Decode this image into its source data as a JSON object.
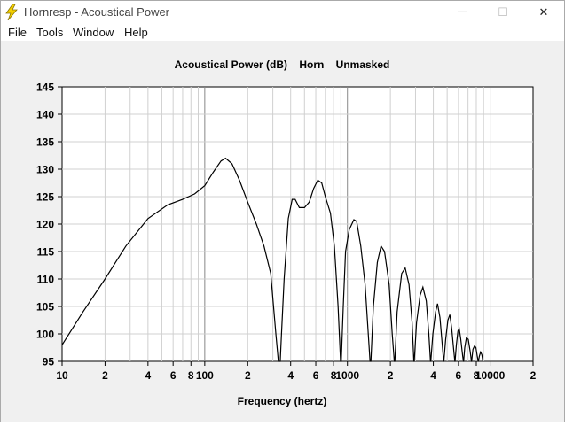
{
  "window": {
    "title": "Hornresp - Acoustical Power",
    "minimize_glyph": "—",
    "maximize_glyph": "☐",
    "close_glyph": "✕"
  },
  "menu": [
    "File",
    "Tools",
    "Window",
    "Help"
  ],
  "colors": {
    "titlebar_bg": "#ffffff",
    "client_bg": "#f0f0f0",
    "plot_bg": "#ffffff",
    "grid": "#d0d0d0",
    "curve": "#000000",
    "icon": "#f5d000"
  },
  "chart_data": {
    "type": "line",
    "title": "Acoustical Power (dB)    Horn    Unmasked",
    "xlabel": "Frequency (hertz)",
    "ylabel": "",
    "x_scale": "log",
    "xlim": [
      10,
      20000
    ],
    "ylim": [
      95,
      145
    ],
    "grid": true,
    "x_tick_labels": [
      {
        "value": 10,
        "label": "10"
      },
      {
        "value": 20,
        "label": "2"
      },
      {
        "value": 40,
        "label": "4"
      },
      {
        "value": 60,
        "label": "6"
      },
      {
        "value": 80,
        "label": "8"
      },
      {
        "value": 100,
        "label": "100"
      },
      {
        "value": 200,
        "label": "2"
      },
      {
        "value": 400,
        "label": "4"
      },
      {
        "value": 600,
        "label": "6"
      },
      {
        "value": 800,
        "label": "8"
      },
      {
        "value": 1000,
        "label": "1000"
      },
      {
        "value": 2000,
        "label": "2"
      },
      {
        "value": 4000,
        "label": "4"
      },
      {
        "value": 6000,
        "label": "6"
      },
      {
        "value": 8000,
        "label": "8"
      },
      {
        "value": 10000,
        "label": "10000"
      },
      {
        "value": 20000,
        "label": "2"
      }
    ],
    "y_ticks": [
      95,
      100,
      105,
      110,
      115,
      120,
      125,
      130,
      135,
      140,
      145
    ],
    "series": [
      {
        "points": [
          [
            10,
            98
          ],
          [
            14,
            104
          ],
          [
            20,
            110
          ],
          [
            28,
            116
          ],
          [
            40,
            121
          ],
          [
            55,
            123.5
          ],
          [
            70,
            124.5
          ],
          [
            85,
            125.5
          ],
          [
            100,
            127
          ],
          [
            115,
            129.5
          ],
          [
            130,
            131.5
          ],
          [
            140,
            132
          ],
          [
            155,
            131
          ],
          [
            175,
            128
          ],
          [
            200,
            124
          ],
          [
            230,
            120
          ],
          [
            260,
            116
          ],
          [
            290,
            111
          ],
          [
            315,
            100
          ],
          [
            328,
            95
          ],
          [
            338,
            95
          ],
          [
            345,
            100
          ],
          [
            360,
            110
          ],
          [
            385,
            121
          ],
          [
            410,
            124.5
          ],
          [
            430,
            124.5
          ],
          [
            460,
            123
          ],
          [
            500,
            123
          ],
          [
            540,
            124
          ],
          [
            580,
            126.5
          ],
          [
            620,
            128
          ],
          [
            660,
            127.5
          ],
          [
            700,
            125
          ],
          [
            760,
            122
          ],
          [
            810,
            116
          ],
          [
            860,
            105
          ],
          [
            895,
            95
          ],
          [
            905,
            95
          ],
          [
            935,
            105
          ],
          [
            970,
            115
          ],
          [
            1030,
            119
          ],
          [
            1110,
            120.8
          ],
          [
            1160,
            120.5
          ],
          [
            1240,
            116
          ],
          [
            1330,
            109
          ],
          [
            1400,
            100
          ],
          [
            1440,
            95
          ],
          [
            1460,
            95
          ],
          [
            1520,
            105
          ],
          [
            1620,
            113
          ],
          [
            1720,
            116
          ],
          [
            1820,
            115
          ],
          [
            1960,
            109
          ],
          [
            2060,
            100
          ],
          [
            2130,
            95
          ],
          [
            2150,
            95
          ],
          [
            2230,
            104
          ],
          [
            2400,
            111
          ],
          [
            2540,
            112
          ],
          [
            2700,
            109
          ],
          [
            2840,
            102
          ],
          [
            2920,
            95
          ],
          [
            2940,
            95
          ],
          [
            3050,
            102
          ],
          [
            3230,
            107
          ],
          [
            3380,
            108.5
          ],
          [
            3570,
            106
          ],
          [
            3720,
            100
          ],
          [
            3820,
            95
          ],
          [
            3840,
            95
          ],
          [
            3970,
            100
          ],
          [
            4150,
            104
          ],
          [
            4280,
            105.5
          ],
          [
            4450,
            103
          ],
          [
            4620,
            98
          ],
          [
            4720,
            95
          ],
          [
            4740,
            95
          ],
          [
            4880,
            99
          ],
          [
            5060,
            102.5
          ],
          [
            5220,
            103.5
          ],
          [
            5380,
            101
          ],
          [
            5560,
            97
          ],
          [
            5660,
            95
          ],
          [
            5680,
            95
          ],
          [
            5800,
            98
          ],
          [
            5950,
            100.5
          ],
          [
            6070,
            101
          ],
          [
            6230,
            99
          ],
          [
            6420,
            96
          ],
          [
            6500,
            95
          ],
          [
            6520,
            95
          ],
          [
            6640,
            97.5
          ],
          [
            6820,
            99.3
          ],
          [
            7030,
            99
          ],
          [
            7230,
            97
          ],
          [
            7400,
            95
          ],
          [
            7420,
            95
          ],
          [
            7580,
            97.2
          ],
          [
            7780,
            97.8
          ],
          [
            7950,
            97.5
          ],
          [
            8120,
            96
          ],
          [
            8250,
            95
          ],
          [
            8270,
            95
          ],
          [
            8420,
            96
          ],
          [
            8580,
            96.7
          ],
          [
            8750,
            96.2
          ],
          [
            8900,
            95
          ]
        ]
      }
    ]
  }
}
